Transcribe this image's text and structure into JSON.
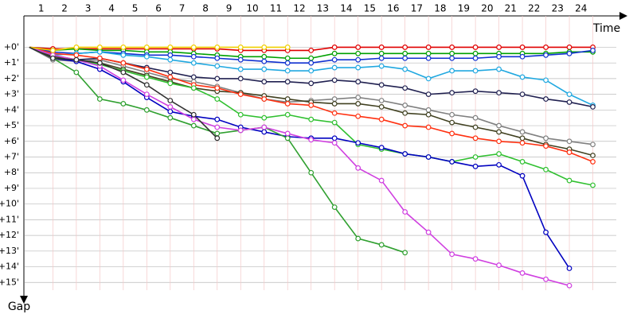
{
  "chart_data": {
    "type": "line",
    "x_label": "Time",
    "y_label": "Gap",
    "x": [
      0,
      1,
      2,
      3,
      4,
      5,
      6,
      7,
      8,
      9,
      10,
      11,
      12,
      13,
      14,
      15,
      16,
      17,
      18,
      19,
      20,
      21,
      22,
      23,
      24
    ],
    "xlim": [
      -0.2,
      25
    ],
    "xticks": [
      1,
      2,
      3,
      4,
      5,
      6,
      7,
      8,
      9,
      10,
      11,
      12,
      13,
      14,
      15,
      16,
      17,
      18,
      19,
      20,
      21,
      22,
      23,
      24
    ],
    "ylim": [
      -2,
      16
    ],
    "yticks": [
      {
        "value": 0,
        "label": "+0'"
      },
      {
        "value": 1,
        "label": "+1'"
      },
      {
        "value": 2,
        "label": "+2'"
      },
      {
        "value": 3,
        "label": "+3'"
      },
      {
        "value": 4,
        "label": "+4'"
      },
      {
        "value": 5,
        "label": "+5'"
      },
      {
        "value": 6,
        "label": "+6'"
      },
      {
        "value": 7,
        "label": "+7'"
      },
      {
        "value": 8,
        "label": "+8'"
      },
      {
        "value": 9,
        "label": "+9'"
      },
      {
        "value": 10,
        "label": "+10'"
      },
      {
        "value": 11,
        "label": "+11'"
      },
      {
        "value": 12,
        "label": "+12'"
      },
      {
        "value": 13,
        "label": "+13'"
      },
      {
        "value": 14,
        "label": "+14'"
      },
      {
        "value": 15,
        "label": "+15'"
      }
    ],
    "inverted_y": true,
    "grid": true,
    "series": [
      {
        "color": "#e00000",
        "values": [
          0,
          0.1,
          0.1,
          0.1,
          0.1,
          0.1,
          0.1,
          0.1,
          0.1,
          0.2,
          0.2,
          0.2,
          0.2,
          0,
          0,
          0,
          0,
          0,
          0,
          0,
          0,
          0,
          0,
          0,
          0
        ]
      },
      {
        "color": "#00a000",
        "values": [
          0,
          0.2,
          0.1,
          0.2,
          0.2,
          0.3,
          0.3,
          0.4,
          0.5,
          0.6,
          0.6,
          0.7,
          0.7,
          0.4,
          0.4,
          0.4,
          0.4,
          0.4,
          0.4,
          0.4,
          0.4,
          0.4,
          0.4,
          0.3,
          0.3
        ]
      },
      {
        "color": "#1030d0",
        "values": [
          0,
          0.3,
          0.4,
          0.3,
          0.4,
          0.5,
          0.5,
          0.6,
          0.7,
          0.8,
          0.9,
          1.0,
          1.0,
          0.8,
          0.8,
          0.7,
          0.7,
          0.7,
          0.7,
          0.7,
          0.6,
          0.6,
          0.5,
          0.4,
          0.2
        ]
      },
      {
        "color": "#20a8e0",
        "values": [
          0,
          0.5,
          0.4,
          0.3,
          0.5,
          0.6,
          0.8,
          1.0,
          1.2,
          1.4,
          1.4,
          1.5,
          1.5,
          1.3,
          1.3,
          1.2,
          1.4,
          2.0,
          1.5,
          1.5,
          1.4,
          1.9,
          2.1,
          3.0,
          3.7
        ]
      },
      {
        "color": "#202050",
        "values": [
          0,
          0.6,
          0.8,
          0.7,
          1.0,
          1.3,
          1.6,
          1.9,
          2.0,
          2.0,
          2.2,
          2.2,
          2.3,
          2.1,
          2.2,
          2.4,
          2.6,
          3.0,
          2.9,
          2.8,
          2.9,
          3.0,
          3.3,
          3.5,
          3.8
        ]
      },
      {
        "color": "#808080",
        "values": [
          0,
          0.8,
          0.9,
          0.8,
          1.2,
          1.6,
          2.0,
          2.2,
          2.5,
          2.9,
          3.3,
          3.5,
          3.4,
          3.3,
          3.2,
          3.4,
          3.7,
          4.0,
          4.3,
          4.5,
          5.0,
          5.4,
          5.8,
          6.0,
          6.2
        ]
      },
      {
        "color": "#404020",
        "values": [
          0,
          0.6,
          0.8,
          1.0,
          1.4,
          1.8,
          2.2,
          2.6,
          2.8,
          2.9,
          3.1,
          3.3,
          3.5,
          3.6,
          3.6,
          3.8,
          4.2,
          4.3,
          4.8,
          5.1,
          5.4,
          5.8,
          6.2,
          6.5,
          6.9
        ]
      },
      {
        "color": "#ff3010",
        "values": [
          0,
          0.4,
          0.5,
          0.7,
          1.0,
          1.4,
          1.9,
          2.4,
          2.6,
          3.0,
          3.3,
          3.6,
          3.7,
          4.2,
          4.4,
          4.6,
          5.0,
          5.1,
          5.5,
          5.8,
          6.0,
          6.1,
          6.3,
          6.7,
          7.3
        ]
      },
      {
        "color": "#30c030",
        "values": [
          0,
          0.5,
          0.8,
          1.1,
          1.5,
          1.9,
          2.3,
          2.6,
          3.3,
          4.3,
          4.5,
          4.3,
          4.6,
          4.8,
          6.2,
          6.5,
          6.8,
          7.0,
          7.3,
          7.0,
          6.8,
          7.3,
          7.8,
          8.5,
          8.8
        ]
      },
      {
        "color": "#0000c0",
        "values": [
          0,
          0.7,
          0.9,
          1.4,
          2.2,
          3.2,
          4.1,
          4.4,
          4.6,
          5.1,
          5.4,
          5.7,
          5.8,
          5.8,
          6.1,
          6.4,
          6.8,
          7.0,
          7.3,
          7.6,
          7.5,
          8.2,
          11.8,
          14.1,
          null
        ]
      },
      {
        "color": "#30a030",
        "values": [
          0,
          0.7,
          1.6,
          3.3,
          3.6,
          4.0,
          4.5,
          5.0,
          5.5,
          5.3,
          5.1,
          5.8,
          8.0,
          10.2,
          12.2,
          12.6,
          13.1,
          null,
          null,
          null,
          null,
          null,
          null,
          null,
          null
        ]
      },
      {
        "color": "#d040e0",
        "values": [
          0,
          0.5,
          0.8,
          1.2,
          2.1,
          3.0,
          3.8,
          4.6,
          5.1,
          5.3,
          5.1,
          5.5,
          5.9,
          6.1,
          7.7,
          8.5,
          10.5,
          11.8,
          13.2,
          13.5,
          13.9,
          14.4,
          14.8,
          15.2,
          null
        ]
      },
      {
        "color": "#f0d000",
        "values": [
          0,
          0.2,
          0,
          0,
          0,
          0,
          0,
          0,
          0,
          0,
          0,
          0,
          null,
          null,
          null,
          null,
          null,
          null,
          null,
          null,
          null,
          null,
          null,
          null,
          null
        ]
      },
      {
        "color": "#303030",
        "values": [
          0,
          0.7,
          0.8,
          1.0,
          1.6,
          2.4,
          3.4,
          4.3,
          5.8,
          null,
          null,
          null,
          null,
          null,
          null,
          null,
          null,
          null,
          null,
          null,
          null,
          null,
          null,
          null,
          null
        ]
      }
    ]
  }
}
